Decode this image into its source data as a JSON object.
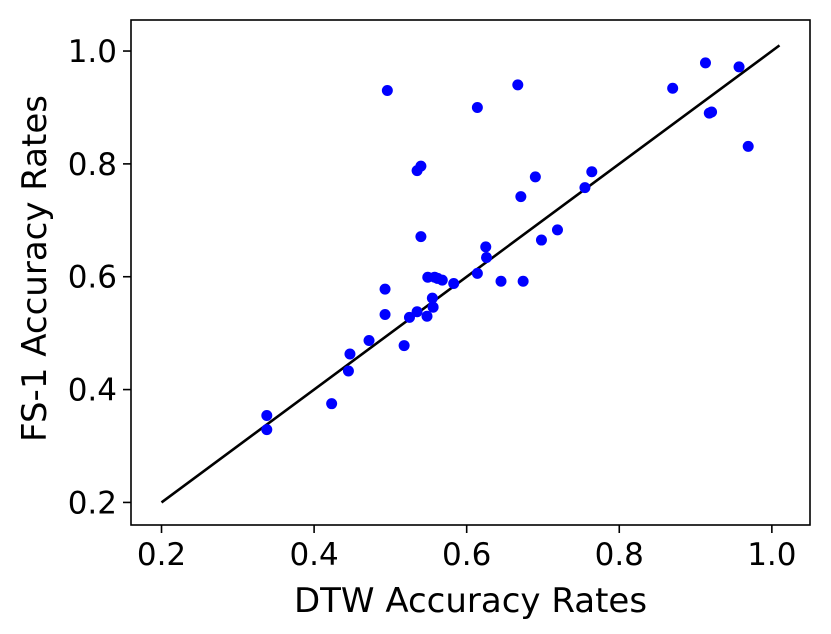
{
  "chart_data": {
    "type": "scatter",
    "title": "",
    "xlabel": "DTW Accuracy Rates",
    "ylabel": "FS-1 Accuracy Rates",
    "xlim": [
      0.16,
      1.05
    ],
    "ylim": [
      0.16,
      1.055
    ],
    "xticks": [
      0.2,
      0.4,
      0.6,
      0.8,
      1.0
    ],
    "yticks": [
      0.2,
      0.4,
      0.6,
      0.8,
      1.0
    ],
    "grid": false,
    "legend": "none",
    "colors": {
      "points": "#0000ff",
      "line": "#000000"
    },
    "reference_line": {
      "x": [
        0.2,
        1.01
      ],
      "y": [
        0.2,
        1.01
      ]
    },
    "series": [
      {
        "x": [
          0.338,
          0.338,
          0.423,
          0.445,
          0.447,
          0.472,
          0.493,
          0.493,
          0.496,
          0.518,
          0.525,
          0.535,
          0.535,
          0.54,
          0.54,
          0.548,
          0.549,
          0.555,
          0.556,
          0.558,
          0.562,
          0.568,
          0.583,
          0.614,
          0.614,
          0.625,
          0.626,
          0.645,
          0.667,
          0.671,
          0.674,
          0.69,
          0.698,
          0.719,
          0.755,
          0.764,
          0.87,
          0.913,
          0.918,
          0.921,
          0.957,
          0.969
        ],
        "y": [
          0.354,
          0.329,
          0.375,
          0.433,
          0.463,
          0.487,
          0.578,
          0.533,
          0.93,
          0.478,
          0.528,
          0.538,
          0.788,
          0.796,
          0.671,
          0.53,
          0.599,
          0.562,
          0.546,
          0.599,
          0.597,
          0.594,
          0.588,
          0.9,
          0.606,
          0.653,
          0.634,
          0.592,
          0.94,
          0.742,
          0.592,
          0.777,
          0.665,
          0.683,
          0.758,
          0.786,
          0.934,
          0.979,
          0.89,
          0.892,
          0.972,
          0.831
        ]
      }
    ]
  }
}
